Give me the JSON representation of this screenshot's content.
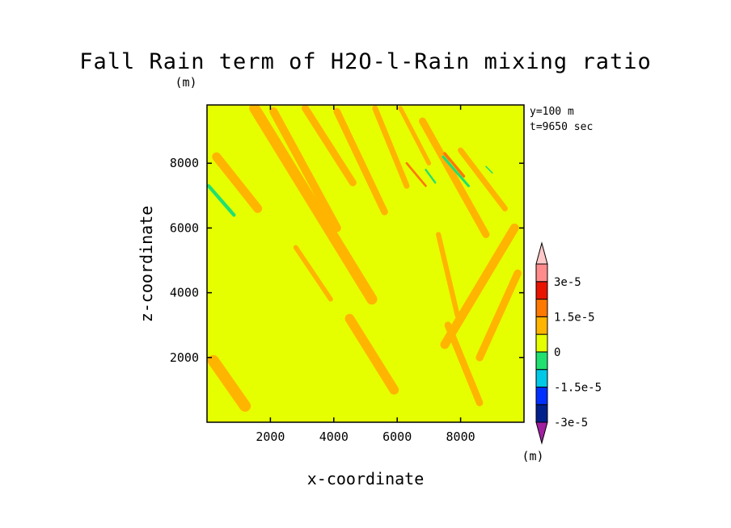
{
  "chart_data": {
    "type": "heatmap",
    "title": "Fall Rain term of H2O-l-Rain mixing ratio",
    "yunit": "(m)",
    "xlabel": "x-coordinate",
    "ylabel": "z-coordinate",
    "xlim": [
      0,
      10000
    ],
    "ylim": [
      0,
      9800
    ],
    "xticks": [
      "2000",
      "4000",
      "6000",
      "8000"
    ],
    "yticks": [
      "2000",
      "4000",
      "6000",
      "8000"
    ],
    "info": [
      "y=100 m",
      "t=9650 sec"
    ],
    "colorbar": {
      "unit": "(m)",
      "labels": [
        "3e-5",
        "1.5e-5",
        "0",
        "-1.5e-5",
        "-3e-5"
      ],
      "levels": [
        -3e-05,
        -2.25e-05,
        -1.5e-05,
        -7.5e-06,
        0,
        7.5e-06,
        1.5e-05,
        2.25e-05,
        3e-05
      ],
      "colors_bottom_to_top": [
        "#a020a0",
        "#00208c",
        "#0030ff",
        "#00c8e6",
        "#20e070",
        "#e6ff00",
        "#ffb400",
        "#ff7800",
        "#e81400",
        "#ff8c8c",
        "#ffc8c8"
      ]
    },
    "field_colors": {
      "background": "#e6ff00",
      "positive": "#ffb400",
      "strong_positive": "#ff7800",
      "negative": "#20e070"
    },
    "positive_bands": [
      {
        "x": [
          1500,
          5200
        ],
        "z": [
          9700,
          3800
        ],
        "w": 340
      },
      {
        "x": [
          300,
          1600
        ],
        "z": [
          8200,
          6600
        ],
        "w": 280
      },
      {
        "x": [
          2100,
          4100
        ],
        "z": [
          9600,
          6000
        ],
        "w": 260
      },
      {
        "x": [
          3100,
          4600
        ],
        "z": [
          9700,
          7400
        ],
        "w": 230
      },
      {
        "x": [
          4100,
          5600
        ],
        "z": [
          9600,
          6500
        ],
        "w": 220
      },
      {
        "x": [
          5300,
          6300
        ],
        "z": [
          9700,
          7300
        ],
        "w": 180
      },
      {
        "x": [
          6800,
          8800
        ],
        "z": [
          9300,
          5800
        ],
        "w": 230
      },
      {
        "x": [
          8000,
          9400
        ],
        "z": [
          8400,
          6600
        ],
        "w": 180
      },
      {
        "x": [
          9700,
          7500
        ],
        "z": [
          6000,
          2400
        ],
        "w": 280
      },
      {
        "x": [
          9800,
          8600
        ],
        "z": [
          4600,
          2000
        ],
        "w": 240
      },
      {
        "x": [
          4500,
          5900
        ],
        "z": [
          3200,
          1000
        ],
        "w": 300
      },
      {
        "x": [
          200,
          1200
        ],
        "z": [
          1900,
          500
        ],
        "w": 360
      },
      {
        "x": [
          7600,
          8600
        ],
        "z": [
          3000,
          600
        ],
        "w": 220
      },
      {
        "x": [
          2800,
          3900
        ],
        "z": [
          5400,
          3800
        ],
        "w": 150
      },
      {
        "x": [
          7300,
          7900
        ],
        "z": [
          5800,
          3300
        ],
        "w": 160
      },
      {
        "x": [
          6100,
          7000
        ],
        "z": [
          9700,
          8000
        ],
        "w": 140
      }
    ],
    "strong_bands": [
      {
        "x": [
          7500,
          8100
        ],
        "z": [
          8300,
          7600
        ],
        "w": 90
      },
      {
        "x": [
          6300,
          6900
        ],
        "z": [
          8000,
          7300
        ],
        "w": 70
      }
    ],
    "negative_bands": [
      {
        "x": [
          50,
          850
        ],
        "z": [
          7300,
          6400
        ],
        "w": 110
      },
      {
        "x": [
          7450,
          8250
        ],
        "z": [
          8200,
          7300
        ],
        "w": 80
      },
      {
        "x": [
          6900,
          7200
        ],
        "z": [
          7800,
          7400
        ],
        "w": 60
      },
      {
        "x": [
          8800,
          9000
        ],
        "z": [
          7900,
          7700
        ],
        "w": 40
      }
    ]
  }
}
